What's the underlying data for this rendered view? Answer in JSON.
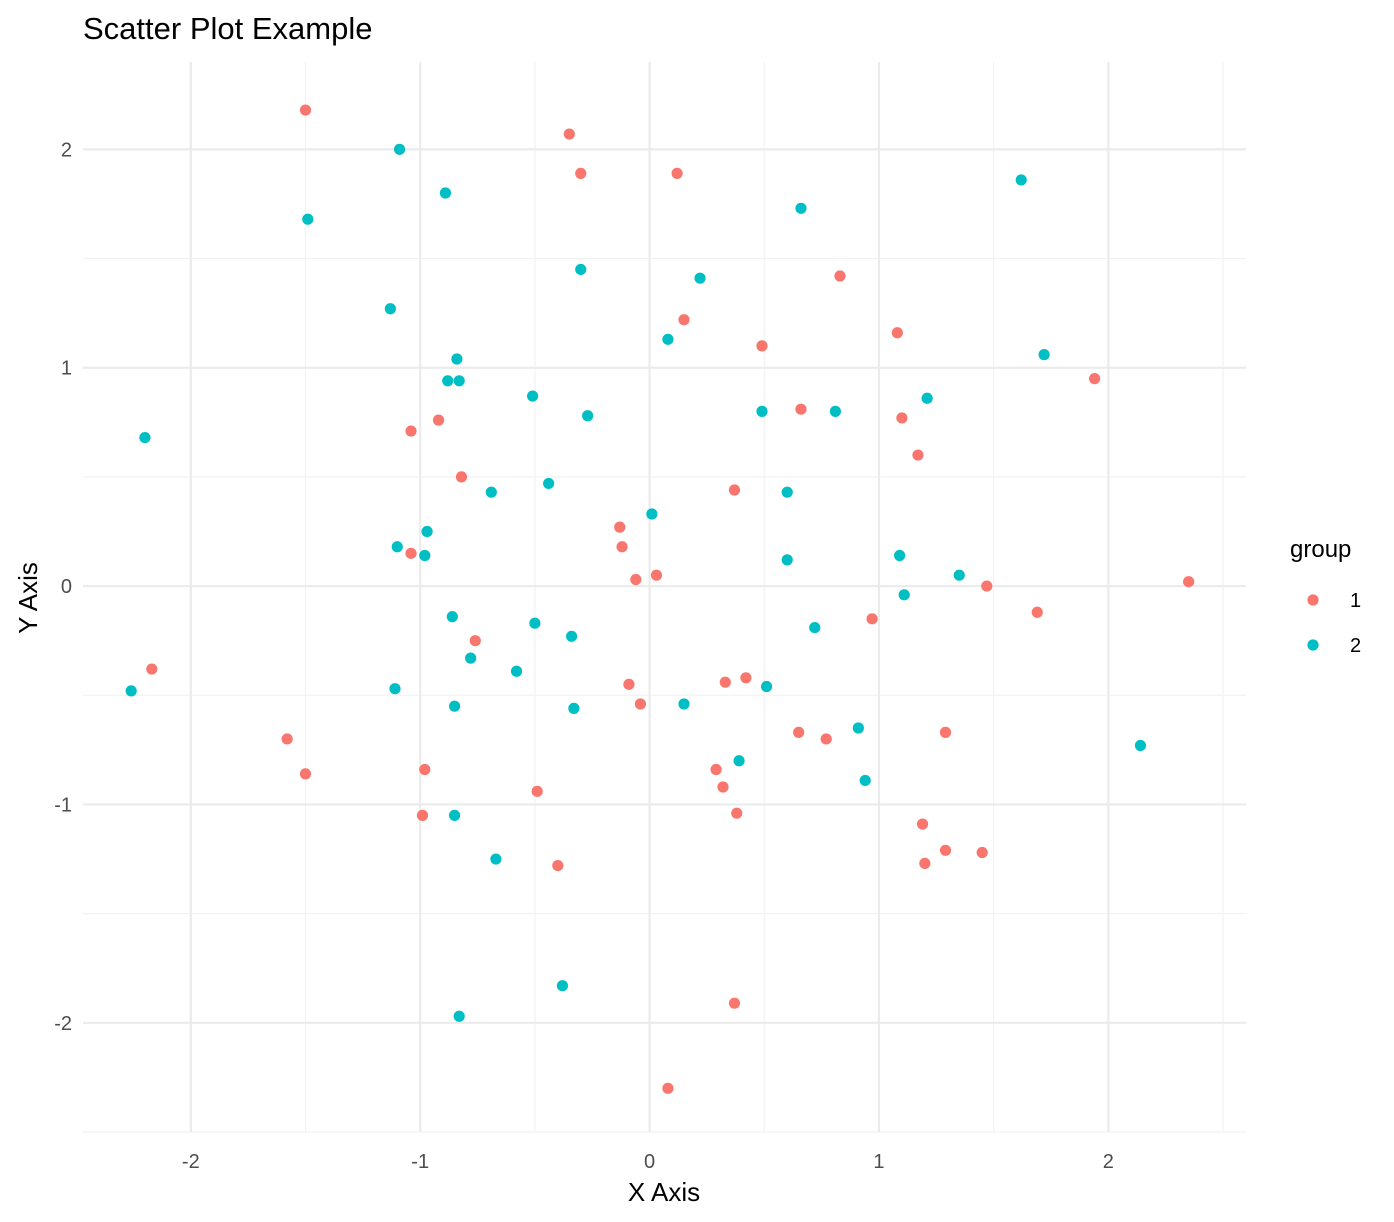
{
  "chart_data": {
    "type": "scatter",
    "title": "Scatter Plot Example",
    "xlabel": "X Axis",
    "ylabel": "Y Axis",
    "xlim": [
      -2.47,
      2.6
    ],
    "ylim": [
      -2.5,
      2.4
    ],
    "x_ticks": [
      -2,
      -1,
      0,
      1,
      2
    ],
    "x_tick_labels": [
      "-2",
      "-1",
      "0",
      "1",
      "2"
    ],
    "y_ticks": [
      -2,
      -1,
      0,
      1,
      2
    ],
    "y_tick_labels": [
      "-2",
      "-1",
      "0",
      "1",
      "2"
    ],
    "grid": true,
    "legend": {
      "title": "group",
      "placement": "right"
    },
    "series": [
      {
        "name": "1",
        "color": "#F8766D",
        "points": [
          [
            -1.5,
            2.18
          ],
          [
            -0.35,
            2.07
          ],
          [
            -0.3,
            1.89
          ],
          [
            0.12,
            1.89
          ],
          [
            0.83,
            1.42
          ],
          [
            0.15,
            1.22
          ],
          [
            1.08,
            1.16
          ],
          [
            0.49,
            1.1
          ],
          [
            1.94,
            0.95
          ],
          [
            0.66,
            0.81
          ],
          [
            1.1,
            0.77
          ],
          [
            -0.92,
            0.76
          ],
          [
            -1.04,
            0.71
          ],
          [
            1.17,
            0.6
          ],
          [
            -0.82,
            0.5
          ],
          [
            0.37,
            0.44
          ],
          [
            -0.13,
            0.27
          ],
          [
            -0.12,
            0.18
          ],
          [
            -1.04,
            0.15
          ],
          [
            0.03,
            0.05
          ],
          [
            -0.06,
            0.03
          ],
          [
            2.35,
            0.02
          ],
          [
            1.47,
            0.0
          ],
          [
            1.69,
            -0.12
          ],
          [
            0.97,
            -0.15
          ],
          [
            -0.76,
            -0.25
          ],
          [
            -2.17,
            -0.38
          ],
          [
            -0.09,
            -0.45
          ],
          [
            0.33,
            -0.44
          ],
          [
            0.42,
            -0.42
          ],
          [
            -0.04,
            -0.54
          ],
          [
            0.65,
            -0.67
          ],
          [
            0.77,
            -0.7
          ],
          [
            1.29,
            -0.67
          ],
          [
            -1.58,
            -0.7
          ],
          [
            -1.5,
            -0.86
          ],
          [
            -0.98,
            -0.84
          ],
          [
            0.29,
            -0.84
          ],
          [
            0.32,
            -0.92
          ],
          [
            -0.49,
            -0.94
          ],
          [
            -0.99,
            -1.05
          ],
          [
            0.38,
            -1.04
          ],
          [
            1.19,
            -1.09
          ],
          [
            1.29,
            -1.21
          ],
          [
            1.45,
            -1.22
          ],
          [
            1.2,
            -1.27
          ],
          [
            -0.4,
            -1.28
          ],
          [
            0.37,
            -1.91
          ],
          [
            0.08,
            -2.3
          ]
        ]
      },
      {
        "name": "2",
        "color": "#00BFC4",
        "points": [
          [
            -1.09,
            2.0
          ],
          [
            -0.89,
            1.8
          ],
          [
            1.62,
            1.86
          ],
          [
            0.66,
            1.73
          ],
          [
            -1.49,
            1.68
          ],
          [
            -0.3,
            1.45
          ],
          [
            0.22,
            1.41
          ],
          [
            -1.13,
            1.27
          ],
          [
            0.08,
            1.13
          ],
          [
            -0.84,
            1.04
          ],
          [
            1.72,
            1.06
          ],
          [
            -0.88,
            0.94
          ],
          [
            -0.83,
            0.94
          ],
          [
            -0.51,
            0.87
          ],
          [
            1.21,
            0.86
          ],
          [
            0.49,
            0.8
          ],
          [
            0.81,
            0.8
          ],
          [
            -0.27,
            0.78
          ],
          [
            -2.2,
            0.68
          ],
          [
            -0.69,
            0.43
          ],
          [
            -0.44,
            0.47
          ],
          [
            0.6,
            0.43
          ],
          [
            0.01,
            0.33
          ],
          [
            -0.97,
            0.25
          ],
          [
            -1.1,
            0.18
          ],
          [
            -0.98,
            0.14
          ],
          [
            1.09,
            0.14
          ],
          [
            0.6,
            0.12
          ],
          [
            1.35,
            0.05
          ],
          [
            1.11,
            -0.04
          ],
          [
            -0.86,
            -0.14
          ],
          [
            -0.5,
            -0.17
          ],
          [
            0.72,
            -0.19
          ],
          [
            -0.34,
            -0.23
          ],
          [
            -0.78,
            -0.33
          ],
          [
            -0.58,
            -0.39
          ],
          [
            -2.26,
            -0.48
          ],
          [
            -1.11,
            -0.47
          ],
          [
            0.51,
            -0.46
          ],
          [
            -0.85,
            -0.55
          ],
          [
            0.15,
            -0.54
          ],
          [
            -0.33,
            -0.56
          ],
          [
            0.91,
            -0.65
          ],
          [
            2.14,
            -0.73
          ],
          [
            0.39,
            -0.8
          ],
          [
            0.94,
            -0.89
          ],
          [
            -0.85,
            -1.05
          ],
          [
            -0.67,
            -1.25
          ],
          [
            -0.38,
            -1.83
          ],
          [
            -0.83,
            -1.97
          ]
        ]
      }
    ]
  }
}
